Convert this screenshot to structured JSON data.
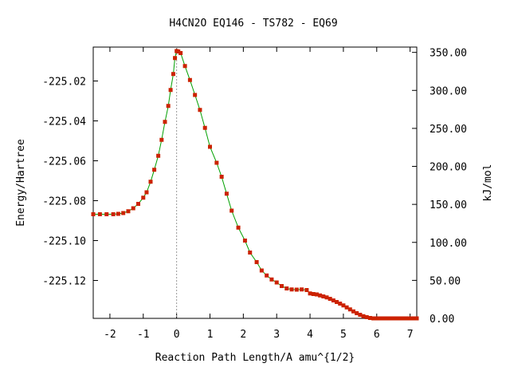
{
  "chart_data": {
    "type": "line",
    "title": "H4CN2O   EQ146 - TS782 - EQ69",
    "xlabel": "Reaction Path Length/A amu^{1/2}",
    "ylabel": "Energy/Hartree",
    "y2label": "kJ/mol",
    "xlim": [
      -2.5,
      7.2
    ],
    "ylim": [
      -225.139,
      -225.003
    ],
    "y2lim": [
      0,
      357
    ],
    "x_ticks": [
      -2,
      -1,
      0,
      1,
      2,
      3,
      4,
      5,
      6,
      7
    ],
    "x_tick_labels": [
      "-2",
      "-1",
      "0",
      "1",
      "2",
      "3",
      "4",
      "5",
      "6",
      "7"
    ],
    "y_ticks": [
      -225.02,
      -225.04,
      -225.06,
      -225.08,
      -225.1,
      -225.12
    ],
    "y_tick_labels": [
      "-225.02",
      "-225.04",
      "-225.06",
      "-225.08",
      "-225.10",
      "-225.12"
    ],
    "y2_ticks": [
      0,
      50,
      100,
      150,
      200,
      250,
      300,
      350
    ],
    "y2_tick_labels": [
      "0.00",
      "50.00",
      "100.00",
      "150.00",
      "200.00",
      "250.00",
      "300.00",
      "350.00"
    ],
    "ts_marker_x": 0,
    "grid": false,
    "colors": {
      "line": "#00a000",
      "point": "#cc2200",
      "marker": "#999999"
    },
    "series": [
      {
        "x": [
          -2.5,
          -2.3,
          -2.1,
          -1.9,
          -1.75,
          -1.6,
          -1.45,
          -1.3,
          -1.15,
          -1.0,
          -0.9,
          -0.78,
          -0.67,
          -0.55,
          -0.45,
          -0.35,
          -0.25,
          -0.18,
          -0.1,
          -0.05,
          0.0,
          0.05,
          0.12,
          0.25,
          0.4,
          0.55,
          0.7,
          0.85,
          1.0,
          1.2,
          1.35,
          1.5,
          1.65,
          1.85,
          2.05,
          2.2,
          2.4,
          2.55,
          2.7,
          2.85,
          3.0,
          3.15,
          3.3,
          3.45,
          3.6,
          3.75,
          3.9,
          4.0,
          4.1,
          4.2,
          4.3,
          4.4,
          4.5,
          4.6,
          4.7,
          4.8,
          4.9,
          5.0,
          5.1,
          5.2,
          5.3,
          5.4,
          5.5,
          5.6,
          5.7,
          5.8,
          5.9,
          6.0,
          6.1,
          6.2,
          6.3,
          6.4,
          6.5,
          6.6,
          6.7,
          6.8,
          6.9,
          7.0,
          7.1,
          7.2
        ],
        "y": [
          -225.0868,
          -225.0868,
          -225.0868,
          -225.0868,
          -225.0866,
          -225.0862,
          -225.0853,
          -225.0838,
          -225.0816,
          -225.0785,
          -225.0758,
          -225.0705,
          -225.0645,
          -225.0575,
          -225.0495,
          -225.0405,
          -225.0325,
          -225.0245,
          -225.0165,
          -225.0085,
          -225.005,
          -225.0052,
          -225.006,
          -225.0125,
          -225.0195,
          -225.027,
          -225.0345,
          -225.0435,
          -225.053,
          -225.061,
          -225.068,
          -225.0765,
          -225.085,
          -225.0935,
          -225.1,
          -225.106,
          -225.1108,
          -225.115,
          -225.1175,
          -225.1195,
          -225.121,
          -225.1228,
          -225.124,
          -225.1245,
          -225.1246,
          -225.1245,
          -225.1248,
          -225.1265,
          -225.1268,
          -225.127,
          -225.1275,
          -225.128,
          -225.1285,
          -225.1292,
          -225.13,
          -225.1308,
          -225.1316,
          -225.1325,
          -225.1335,
          -225.1345,
          -225.1355,
          -225.1364,
          -225.1372,
          -225.1379,
          -225.1384,
          -225.1388,
          -225.139,
          -225.139,
          -225.139,
          -225.139,
          -225.139,
          -225.139,
          -225.139,
          -225.139,
          -225.139,
          -225.139,
          -225.139,
          -225.139,
          -225.139,
          -225.139
        ]
      }
    ]
  }
}
